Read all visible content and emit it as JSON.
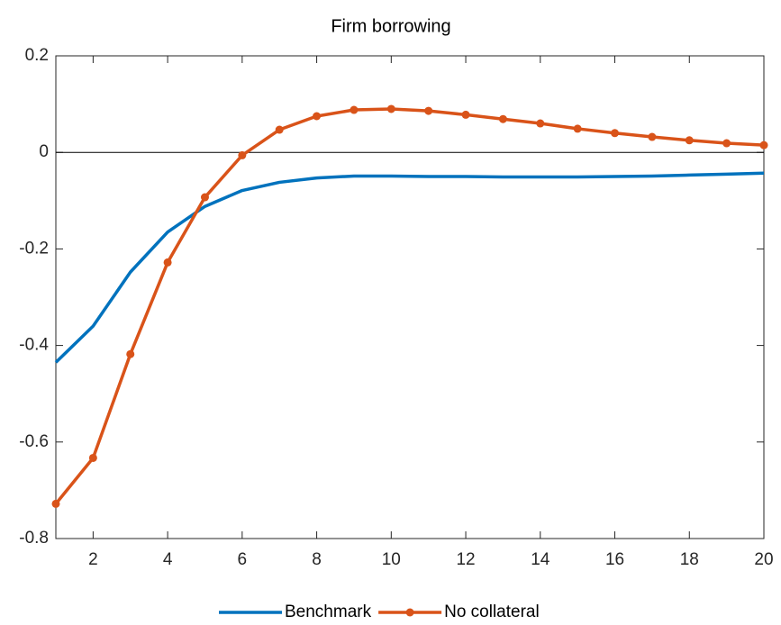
{
  "chart_data": {
    "type": "line",
    "title": "Firm borrowing",
    "x": [
      1,
      2,
      3,
      4,
      5,
      6,
      7,
      8,
      9,
      10,
      11,
      12,
      13,
      14,
      15,
      16,
      17,
      18,
      19,
      20
    ],
    "series": [
      {
        "name": "Benchmark",
        "color": "#0072bd",
        "marker": false,
        "values": [
          -0.435,
          -0.36,
          -0.248,
          -0.165,
          -0.112,
          -0.079,
          -0.062,
          -0.053,
          -0.049,
          -0.049,
          -0.05,
          -0.05,
          -0.051,
          -0.051,
          -0.051,
          -0.05,
          -0.049,
          -0.047,
          -0.045,
          -0.043
        ]
      },
      {
        "name": "No collateral",
        "color": "#d95319",
        "marker": true,
        "values": [
          -0.728,
          -0.633,
          -0.418,
          -0.228,
          -0.093,
          -0.006,
          0.047,
          0.075,
          0.088,
          0.09,
          0.086,
          0.078,
          0.069,
          0.06,
          0.049,
          0.04,
          0.032,
          0.025,
          0.019,
          0.015
        ]
      }
    ],
    "xlim": [
      1,
      20
    ],
    "xticks": [
      2,
      4,
      6,
      8,
      10,
      12,
      14,
      16,
      18,
      20
    ],
    "ylim": [
      -0.8,
      0.2
    ],
    "yticks": [
      -0.8,
      -0.6,
      -0.4,
      -0.2,
      0,
      0.2
    ],
    "hlines": [
      0
    ],
    "grid": false,
    "legend": "bottom"
  }
}
